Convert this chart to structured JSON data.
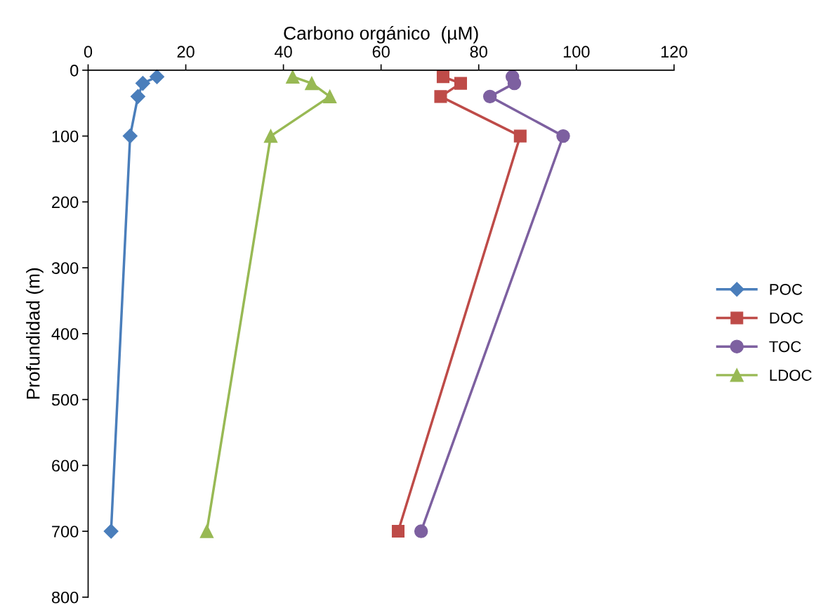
{
  "chart_data": {
    "type": "line",
    "xlabel": "Carbono orgánico  (µM)",
    "ylabel": "Profundidad (m)",
    "xlim": [
      0,
      120
    ],
    "xticks": [
      0,
      20,
      40,
      60,
      80,
      100,
      120
    ],
    "ylim": [
      800,
      0
    ],
    "yticks": [
      0,
      100,
      200,
      300,
      400,
      500,
      600,
      700,
      800
    ],
    "grid": false,
    "legend": "right",
    "line_style": "solid",
    "series": [
      {
        "name": "POC",
        "color": "#4a7ebb",
        "marker": "diamond",
        "x": [
          14.1,
          11.2,
          10.2,
          8.6,
          4.7
        ],
        "values": [
          10,
          20,
          40,
          100,
          700
        ]
      },
      {
        "name": "DOC",
        "color": "#be4b48",
        "marker": "square",
        "x": [
          72.7,
          76.3,
          72.2,
          88.5,
          63.5
        ],
        "values": [
          10,
          20,
          40,
          100,
          700
        ]
      },
      {
        "name": "TOC",
        "color": "#7d60a0",
        "marker": "circle",
        "x": [
          86.9,
          87.3,
          82.3,
          97.3,
          68.2
        ],
        "values": [
          10,
          20,
          40,
          100,
          700
        ]
      },
      {
        "name": "LDOC",
        "color": "#98b954",
        "marker": "triangle",
        "x": [
          41.9,
          45.8,
          49.5,
          37.4,
          24.3
        ],
        "values": [
          10,
          20,
          40,
          100,
          700
        ]
      }
    ]
  }
}
